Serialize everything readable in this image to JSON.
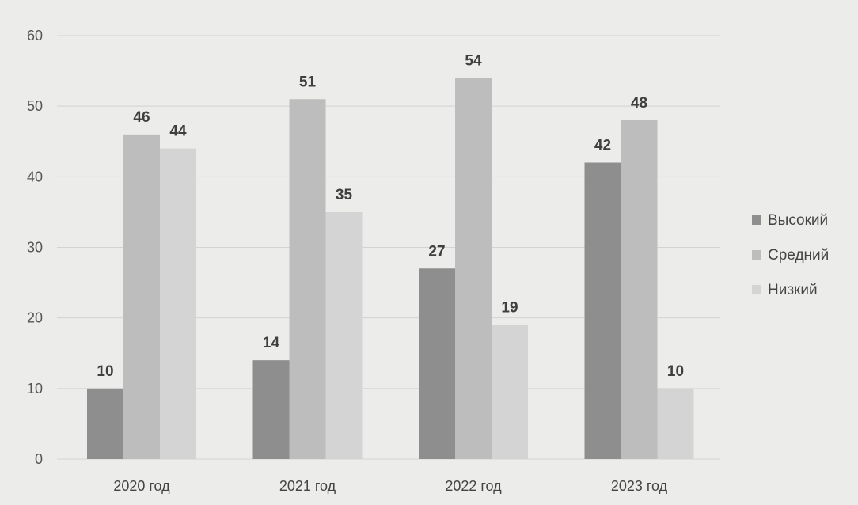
{
  "chart_data": {
    "type": "bar",
    "categories": [
      "2020 год",
      "2021 год",
      "2022 год",
      "2023 год"
    ],
    "series": [
      {
        "name": "Высокий",
        "values": [
          10,
          14,
          27,
          42
        ],
        "color": "#8e8e8e"
      },
      {
        "name": "Средний",
        "values": [
          46,
          51,
          54,
          48
        ],
        "color": "#bdbdbd"
      },
      {
        "name": "Низкий",
        "values": [
          44,
          35,
          19,
          10
        ],
        "color": "#d4d4d4"
      }
    ],
    "ylim": [
      0,
      60
    ],
    "yticks": [
      0,
      10,
      20,
      30,
      40,
      50,
      60
    ],
    "grid": true,
    "legend_position": "right",
    "data_labels": true
  }
}
